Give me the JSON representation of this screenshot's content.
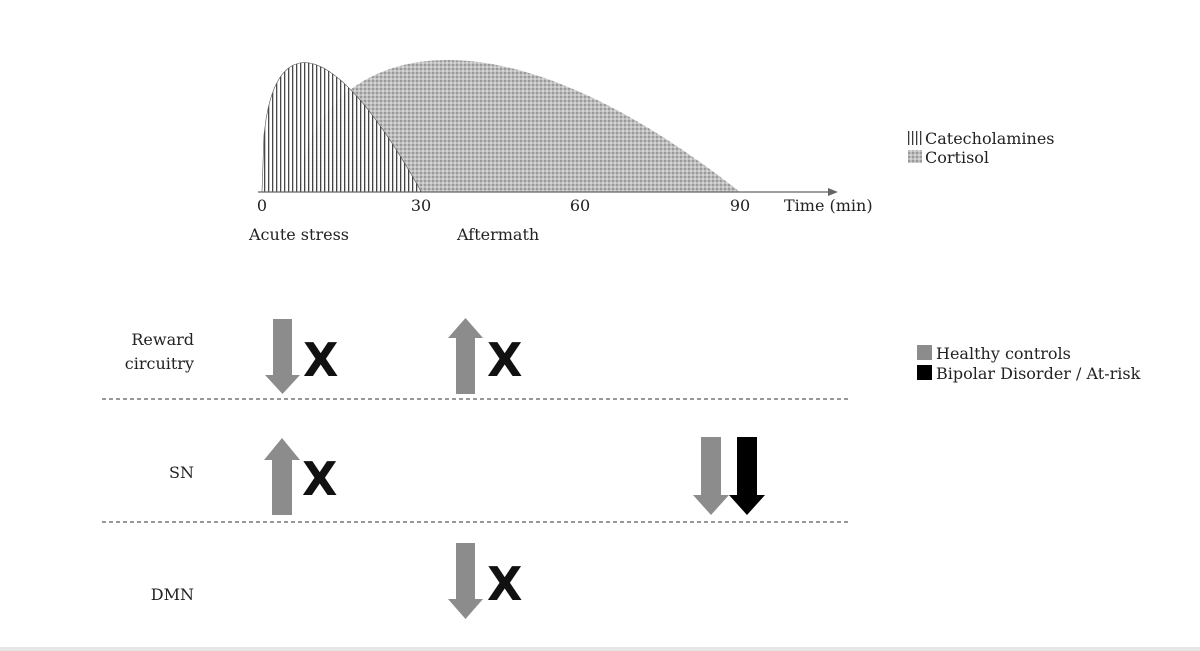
{
  "chart_data": {
    "type": "area",
    "x_ticks": [
      "0",
      "30",
      "60",
      "90"
    ],
    "x_axis_label": "Time (min)",
    "phases": [
      "Acute stress",
      "Aftermath"
    ],
    "series": [
      {
        "name": "Catecholamines",
        "pattern": "vertical-lines",
        "start": 0,
        "peak": 8,
        "end": 30,
        "relative_peak": 0.98
      },
      {
        "name": "Cortisol",
        "pattern": "crosshatch",
        "start": 7,
        "peak": 35,
        "end": 90,
        "relative_peak": 1.0
      }
    ],
    "legend_position": "right"
  },
  "legend_top": {
    "catecholamines": "Catecholamines",
    "cortisol": "Cortisol"
  },
  "rows": [
    {
      "label_lines": [
        "Reward",
        "circuitry"
      ],
      "effects": [
        {
          "phase": "Acute stress",
          "direction": "down",
          "group": "healthy",
          "marker": "X"
        },
        {
          "phase": "Aftermath",
          "direction": "up",
          "group": "healthy",
          "marker": "X"
        }
      ]
    },
    {
      "label_lines": [
        "SN"
      ],
      "effects": [
        {
          "phase": "Acute stress",
          "direction": "up",
          "group": "healthy",
          "marker": "X"
        },
        {
          "phase": "late",
          "direction": "down",
          "group": "healthy",
          "marker": ""
        },
        {
          "phase": "late",
          "direction": "down",
          "group": "bipolar",
          "marker": ""
        }
      ]
    },
    {
      "label_lines": [
        "DMN"
      ],
      "effects": [
        {
          "phase": "Aftermath",
          "direction": "down",
          "group": "healthy",
          "marker": "X"
        }
      ]
    }
  ],
  "legend_bottom": {
    "healthy": "Healthy controls",
    "bipolar": "Bipolar Disorder / At-risk"
  },
  "colors": {
    "healthy": "#8c8c8c",
    "bipolar": "#000000",
    "axis": "#666666",
    "divider": "#777777"
  }
}
